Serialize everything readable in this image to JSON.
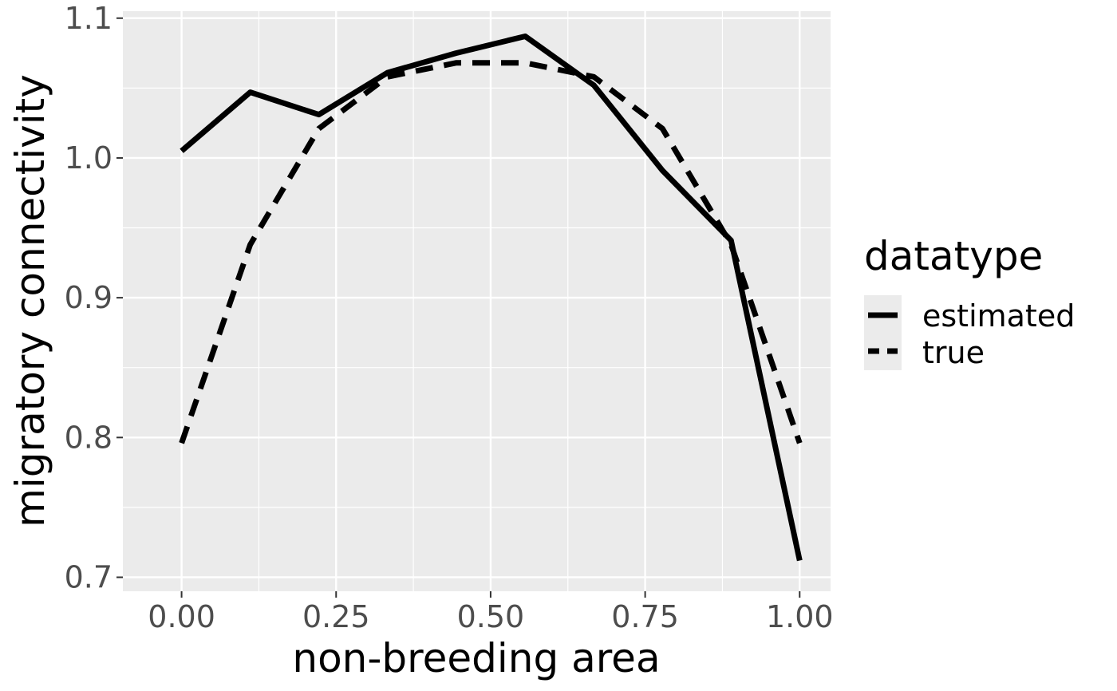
{
  "chart_data": {
    "type": "line",
    "title": "",
    "xlabel": "non-breeding area",
    "ylabel": "migratory connectivity",
    "xlim": [
      -0.095,
      1.05
    ],
    "ylim": [
      0.69,
      1.105
    ],
    "x_ticks": [
      0,
      0.25,
      0.5,
      0.75,
      1.0
    ],
    "x_tick_labels": [
      "0.00",
      "0.25",
      "0.50",
      "0.75",
      "1.00"
    ],
    "y_ticks": [
      0.7,
      0.8,
      0.9,
      1.0,
      1.1
    ],
    "y_tick_labels": [
      "0.7",
      "0.8",
      "0.9",
      "1.0",
      "1.1"
    ],
    "grid": true,
    "legend": {
      "title": "datatype",
      "placement": "right",
      "entries": [
        "estimated",
        "true"
      ]
    },
    "series": [
      {
        "name": "estimated",
        "linetype": "solid",
        "x": [
          0,
          0.111,
          0.222,
          0.333,
          0.444,
          0.556,
          0.667,
          0.778,
          0.889,
          1.0
        ],
        "y": [
          1.005,
          1.047,
          1.031,
          1.061,
          1.075,
          1.087,
          1.052,
          0.991,
          0.941,
          0.712
        ]
      },
      {
        "name": "true",
        "linetype": "dashed",
        "x": [
          0,
          0.111,
          0.222,
          0.333,
          0.444,
          0.556,
          0.667,
          0.778,
          0.889,
          1.0
        ],
        "y": [
          0.796,
          0.938,
          1.021,
          1.058,
          1.068,
          1.068,
          1.058,
          1.021,
          0.938,
          0.796
        ]
      }
    ],
    "colors": {
      "panel_background": "#ebebeb",
      "grid": "#ffffff",
      "line": "#000000",
      "tick_text": "#4d4d4d"
    }
  }
}
